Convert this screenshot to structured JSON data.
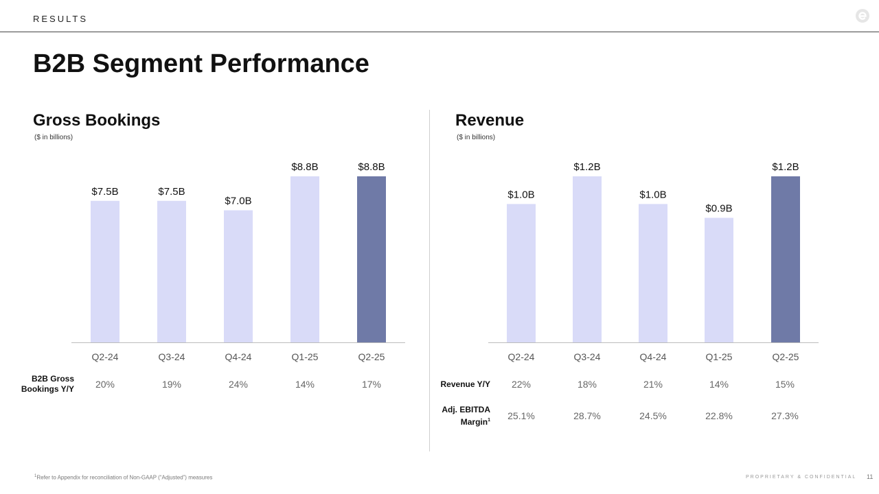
{
  "header": {
    "section": "RESULTS",
    "title": "B2B Segment Performance"
  },
  "panels": {
    "bookings": {
      "title": "Gross Bookings",
      "subtitle": "($ in billions)"
    },
    "revenue": {
      "title": "Revenue",
      "subtitle": "($ in billions)"
    }
  },
  "chart_data": [
    {
      "type": "bar",
      "title": "Gross Bookings",
      "subtitle": "($ in billions)",
      "categories": [
        "Q2-24",
        "Q3-24",
        "Q4-24",
        "Q1-25",
        "Q2-25"
      ],
      "values": [
        7.5,
        7.5,
        7.0,
        8.8,
        8.8
      ],
      "data_labels": [
        "$7.5B",
        "$7.5B",
        "$7.0B",
        "$8.8B",
        "$8.8B"
      ],
      "highlight_index": 4,
      "bar_color": "#d9dbf8",
      "highlight_color": "#6f7aa7",
      "ylim": [
        0,
        8.8
      ],
      "grid": false
    },
    {
      "type": "bar",
      "title": "Revenue",
      "subtitle": "($ in billions)",
      "categories": [
        "Q2-24",
        "Q3-24",
        "Q4-24",
        "Q1-25",
        "Q2-25"
      ],
      "values": [
        1.0,
        1.2,
        1.0,
        0.9,
        1.2
      ],
      "data_labels": [
        "$1.0B",
        "$1.2B",
        "$1.0B",
        "$0.9B",
        "$1.2B"
      ],
      "highlight_index": 4,
      "bar_color": "#d9dbf8",
      "highlight_color": "#6f7aa7",
      "ylim": [
        0,
        1.2
      ],
      "grid": false
    }
  ],
  "metrics": {
    "bookings_yy": {
      "label": "B2B Gross Bookings Y/Y",
      "values": [
        "20%",
        "19%",
        "24%",
        "14%",
        "17%"
      ]
    },
    "revenue_yy": {
      "label": "Revenue Y/Y",
      "values": [
        "22%",
        "18%",
        "21%",
        "14%",
        "15%"
      ]
    },
    "ebitda_margin": {
      "label": "Adj. EBITDA Margin",
      "footnote_ref": "1",
      "values": [
        "25.1%",
        "28.7%",
        "24.5%",
        "22.8%",
        "27.3%"
      ]
    }
  },
  "footer": {
    "footnote_ref": "1",
    "footnote": "Refer to Appendix for reconciliation of Non-GAAP (“Adjusted”) measures",
    "confidential": "PROPRIETARY & CONFIDENTIAL",
    "page_number": "11"
  },
  "icons": {
    "logo": "brand-logo-icon"
  },
  "colors": {
    "bar": "#d9dbf8",
    "highlight": "#6f7aa7",
    "axis": "#bbbbbb",
    "metric_text": "#666666"
  }
}
